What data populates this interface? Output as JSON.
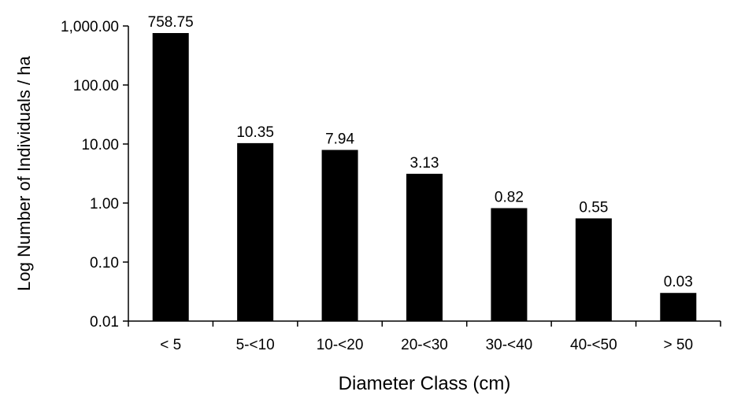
{
  "chart_data": {
    "type": "bar",
    "scale": "log",
    "categories": [
      "< 5",
      "5-<10",
      "10-<20",
      "20-<30",
      "30-<40",
      "40-<50",
      "> 50"
    ],
    "values": [
      758.75,
      10.35,
      7.94,
      3.13,
      0.82,
      0.55,
      0.03
    ],
    "data_labels": [
      "758.75",
      "10.35",
      "7.94",
      "3.13",
      "0.82",
      "0.55",
      "0.03"
    ],
    "title": "",
    "xlabel": "Diameter Class (cm)",
    "ylabel": "Log Number of Individuals / ha",
    "ylim": [
      0.01,
      1000
    ],
    "yticks": [
      0.01,
      0.1,
      1,
      10,
      100,
      1000
    ],
    "ytick_labels": [
      "0.01",
      "0.10",
      "1.00",
      "10.00",
      "100.00",
      "1,000.00"
    ],
    "grid": false,
    "legend": "none",
    "bar_color": "#000000"
  }
}
